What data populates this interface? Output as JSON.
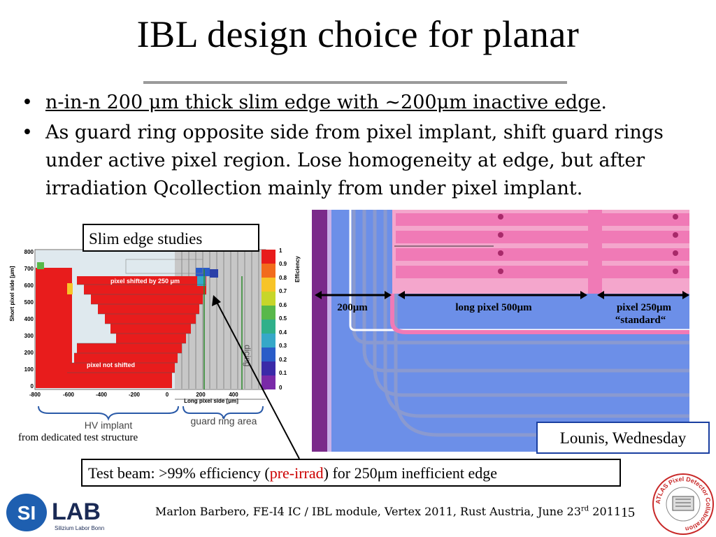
{
  "slide": {
    "title": "IBL design choice for planar",
    "bullets": [
      {
        "underlined": "n-in-n 200 μm thick slim edge with ~200μm inactive edge",
        "tail": "."
      },
      {
        "text": "As guard ring opposite side from pixel implant, shift guard rings under active pixel region. Lose homogeneity at edge, but after irradiation Qcollection mainly from under pixel implant."
      }
    ],
    "slim_edge_label": "Slim edge studies",
    "from_dedicated": "from dedicated test structure",
    "lounis": "Lounis, Wednesday",
    "test_beam": {
      "pre": "Test beam: >99% efficiency (",
      "red": "pre-irrad",
      "post": ") for 250μm inefficient edge"
    },
    "footer": {
      "main": "Marlon Barbero, FE-I4 IC / IBL module, Vertex 2011, Rust Austria, June 23",
      "sup": "rd",
      "year": " 2011"
    },
    "page_number": "15"
  },
  "plot": {
    "ylabel": "Short pixel side [μm]",
    "xlabel": "Long pixel side [μm]",
    "y_ticks": [
      "800",
      "700",
      "600",
      "500",
      "400",
      "300",
      "200",
      "100",
      "0"
    ],
    "x_ticks": [
      "-800",
      "-600",
      "-400",
      "-200",
      "0",
      "200",
      "400"
    ],
    "colorbar_label": "Efficiency",
    "colorbar_ticks": [
      "1",
      "0.9",
      "0.8",
      "0.7",
      "0.6",
      "0.5",
      "0.4",
      "0.3",
      "0.2",
      "0.1",
      "0"
    ],
    "annot_shifted": "pixel shifted by 250 μm",
    "annot_not_shifted": "pixel not shifted",
    "dicing": "dicing",
    "hv_implant": "HV implant",
    "guard_ring_area": "guard ring area",
    "colors": {
      "efficiency_high": "#e81c1c",
      "guard": "#b8b8b8"
    }
  },
  "layout": {
    "dim_200": "200μm",
    "dim_long": "long pixel 500μm",
    "dim_250": "pixel 250μm",
    "dim_standard": "“standard“",
    "colors": {
      "substrate": "#6c8fe8",
      "implant": "#f07ab6",
      "edge": "#7a2a8a"
    }
  },
  "logos": {
    "silab_si": "SI",
    "silab_lab": "LAB",
    "silab_sub": "Silizium Labor Bonn",
    "atlas": "ATLAS Pixel Detector Collaboration"
  }
}
